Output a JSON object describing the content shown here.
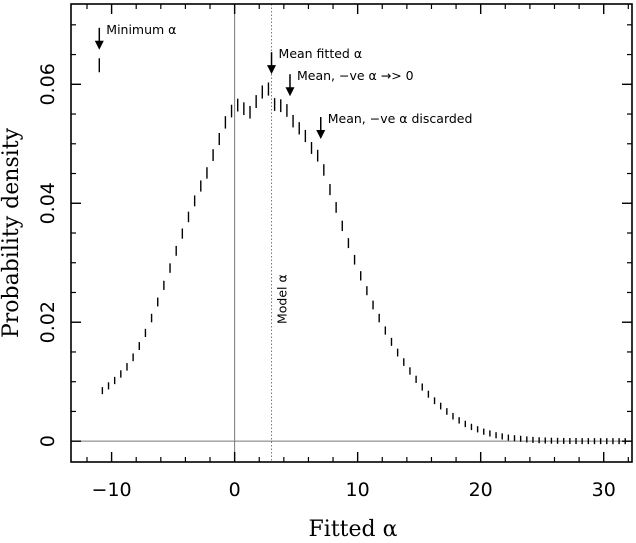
{
  "chart_data": {
    "type": "histogram",
    "xlabel": "Fitted α",
    "ylabel": "Probability density",
    "xlim": [
      -13.3,
      32.3
    ],
    "ylim": [
      -0.0035,
      0.0735
    ],
    "xticks": [
      -10,
      0,
      10,
      20,
      30
    ],
    "yticks": [
      0,
      0.02,
      0.04,
      0.06
    ],
    "xtick_labels": [
      "−10",
      "0",
      "10",
      "20",
      "30"
    ],
    "ytick_labels": [
      "0",
      "0.02",
      "0.04",
      "0.06"
    ],
    "bin_width": 0.5,
    "bin_centers": [
      -10.75,
      -10.25,
      -9.75,
      -9.25,
      -8.75,
      -8.25,
      -7.75,
      -7.25,
      -6.75,
      -6.25,
      -5.75,
      -5.25,
      -4.75,
      -4.25,
      -3.75,
      -3.25,
      -2.75,
      -2.25,
      -1.75,
      -1.25,
      -0.75,
      -0.25,
      0.25,
      0.75,
      1.25,
      1.75,
      2.25,
      2.75,
      3.25,
      3.75,
      4.25,
      4.75,
      5.25,
      5.75,
      6.25,
      6.75,
      7.25,
      7.75,
      8.25,
      8.75,
      9.25,
      9.75,
      10.25,
      10.75,
      11.25,
      11.75,
      12.25,
      12.75,
      13.25,
      13.75,
      14.25,
      14.75,
      15.25,
      15.75,
      16.25,
      16.75,
      17.25,
      17.75,
      18.25,
      18.75,
      19.25,
      19.75,
      20.25,
      20.75,
      21.25,
      21.75,
      22.25,
      22.75,
      23.25,
      23.75,
      24.25,
      24.75,
      25.25,
      25.75,
      26.25,
      26.75,
      27.25,
      27.75,
      28.25,
      28.75,
      29.25,
      29.75,
      30.25,
      30.75,
      31.25,
      31.75
    ],
    "density": [
      0.0085,
      0.0093,
      0.0102,
      0.0113,
      0.0125,
      0.0141,
      0.016,
      0.0182,
      0.0207,
      0.0234,
      0.0262,
      0.0291,
      0.032,
      0.0349,
      0.0377,
      0.0404,
      0.0429,
      0.0451,
      0.0481,
      0.0508,
      0.0536,
      0.0555,
      0.0565,
      0.0559,
      0.0553,
      0.0571,
      0.0587,
      0.0592,
      0.0566,
      0.0564,
      0.0556,
      0.0538,
      0.0526,
      0.0513,
      0.0493,
      0.048,
      0.0456,
      0.0423,
      0.0393,
      0.0362,
      0.0333,
      0.0305,
      0.0278,
      0.0253,
      0.0229,
      0.0207,
      0.0186,
      0.0167,
      0.0149,
      0.0133,
      0.0118,
      0.0104,
      0.0091,
      0.0079,
      0.0068,
      0.0059,
      0.005,
      0.0042,
      0.0035,
      0.0029,
      0.0024,
      0.002,
      0.0016,
      0.0013,
      0.001,
      0.0008,
      0.0006,
      0.0005,
      0.0004,
      0.0003,
      0.00022,
      0.00016,
      0.00012,
      8e-05,
      6e-05,
      4e-05,
      3e-05,
      2e-05,
      1e-05,
      1e-05,
      5e-06,
      5e-06,
      3e-06,
      2e-06,
      1e-06,
      1e-06
    ],
    "outlier_bin": {
      "x": -11.0,
      "density": 0.0632
    },
    "reference_lines": [
      {
        "x": 0,
        "style": "solid"
      },
      {
        "x": 3,
        "style": "dotted",
        "label": "Model α"
      }
    ],
    "zero_line": true,
    "annotations": [
      {
        "text": "Minimum α",
        "x": -11.0,
        "y": 0.0658
      },
      {
        "text": "Mean fitted α",
        "x": 3.0,
        "y": 0.0617
      },
      {
        "text": "Mean, −ve α →> 0",
        "x": 4.5,
        "y": 0.058
      },
      {
        "text": "Mean, −ve α discarded",
        "x": 7.0,
        "y": 0.0508
      }
    ]
  }
}
